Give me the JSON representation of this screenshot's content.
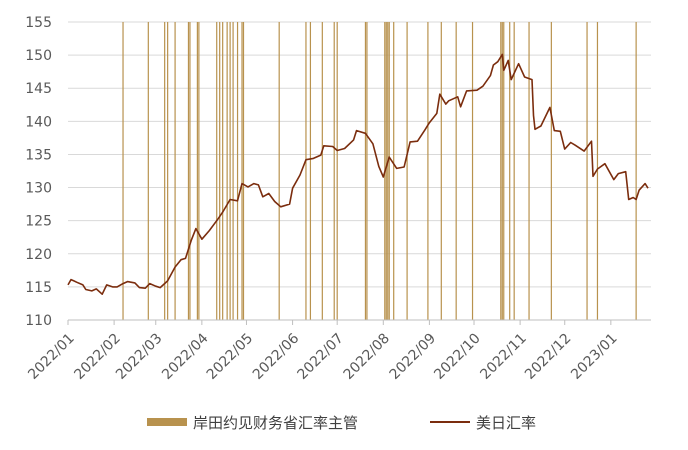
{
  "chart_data": {
    "type": "line",
    "title": "",
    "xlabel": "",
    "ylabel": "",
    "ylim": [
      110,
      155
    ],
    "y_ticks": [
      110,
      115,
      120,
      125,
      130,
      135,
      140,
      145,
      150,
      155
    ],
    "xlim": [
      "2022-01-01",
      "2023-01-28"
    ],
    "x_tick_labels": [
      "2022/01",
      "2022/02",
      "2022/03",
      "2022/04",
      "2022/05",
      "2022/06",
      "2022/07",
      "2022/08",
      "2022/09",
      "2022/10",
      "2022/11",
      "2022/12",
      "2023/01"
    ],
    "x_tick_dates": [
      "2022-01-01",
      "2022-02-01",
      "2022-03-01",
      "2022-04-01",
      "2022-05-01",
      "2022-06-01",
      "2022-07-01",
      "2022-08-01",
      "2022-09-01",
      "2022-10-01",
      "2022-11-01",
      "2022-12-01",
      "2023-01-01"
    ],
    "grid": "horizontal",
    "legend_position": "bottom",
    "colors": {
      "verbal_intervention": "#B8924E",
      "usdjpy": "#7B2D0E",
      "grid": "#D9D9D9",
      "axis": "#BFBFBF"
    },
    "series": [
      {
        "name": "美日汇率",
        "type": "line",
        "x": [
          "2022-01-01",
          "2022-01-03",
          "2022-01-05",
          "2022-01-07",
          "2022-01-11",
          "2022-01-13",
          "2022-01-17",
          "2022-01-20",
          "2022-01-24",
          "2022-01-27",
          "2022-01-31",
          "2022-02-03",
          "2022-02-07",
          "2022-02-10",
          "2022-02-15",
          "2022-02-18",
          "2022-02-22",
          "2022-02-25",
          "2022-03-01",
          "2022-03-04",
          "2022-03-09",
          "2022-03-14",
          "2022-03-18",
          "2022-03-21",
          "2022-03-25",
          "2022-03-28",
          "2022-04-01",
          "2022-04-06",
          "2022-04-12",
          "2022-04-15",
          "2022-04-20",
          "2022-04-25",
          "2022-04-28",
          "2022-05-02",
          "2022-05-06",
          "2022-05-09",
          "2022-05-12",
          "2022-05-16",
          "2022-05-20",
          "2022-05-24",
          "2022-05-30",
          "2022-06-01",
          "2022-06-06",
          "2022-06-10",
          "2022-06-15",
          "2022-06-20",
          "2022-06-22",
          "2022-06-28",
          "2022-07-01",
          "2022-07-06",
          "2022-07-12",
          "2022-07-14",
          "2022-07-20",
          "2022-07-25",
          "2022-07-29",
          "2022-08-01",
          "2022-08-05",
          "2022-08-10",
          "2022-08-15",
          "2022-08-19",
          "2022-08-24",
          "2022-08-29",
          "2022-09-01",
          "2022-09-06",
          "2022-09-08",
          "2022-09-12",
          "2022-09-14",
          "2022-09-20",
          "2022-09-22",
          "2022-09-26",
          "2022-10-03",
          "2022-10-07",
          "2022-10-12",
          "2022-10-14",
          "2022-10-17",
          "2022-10-20",
          "2022-10-21",
          "2022-10-24",
          "2022-10-26",
          "2022-10-31",
          "2022-11-04",
          "2022-11-09",
          "2022-11-10",
          "2022-11-11",
          "2022-11-15",
          "2022-11-21",
          "2022-11-24",
          "2022-11-28",
          "2022-12-01",
          "2022-12-05",
          "2022-12-08",
          "2022-12-14",
          "2022-12-19",
          "2022-12-20",
          "2022-12-23",
          "2022-12-28",
          "2023-01-03",
          "2023-01-06",
          "2023-01-11",
          "2023-01-13",
          "2023-01-16",
          "2023-01-18",
          "2023-01-20",
          "2023-01-24",
          "2023-01-26"
        ],
        "y": [
          115.3,
          116.1,
          115.9,
          115.7,
          115.3,
          114.6,
          114.4,
          114.7,
          113.9,
          115.3,
          115.0,
          115.0,
          115.5,
          115.8,
          115.6,
          114.9,
          114.8,
          115.5,
          115.1,
          114.9,
          115.9,
          118.0,
          119.1,
          119.3,
          122.1,
          123.8,
          122.2,
          123.5,
          125.3,
          126.3,
          128.2,
          128.0,
          130.6,
          130.1,
          130.6,
          130.4,
          128.6,
          129.1,
          127.9,
          127.1,
          127.5,
          129.9,
          131.9,
          134.2,
          134.4,
          134.9,
          136.3,
          136.2,
          135.6,
          135.9,
          137.2,
          138.6,
          138.2,
          136.6,
          133.2,
          131.6,
          134.6,
          132.9,
          133.1,
          136.9,
          137.0,
          138.7,
          139.8,
          141.2,
          144.1,
          142.6,
          143.1,
          143.7,
          142.2,
          144.6,
          144.7,
          145.3,
          146.9,
          148.5,
          149.0,
          150.1,
          147.7,
          149.2,
          146.3,
          148.7,
          146.7,
          146.3,
          140.9,
          138.8,
          139.3,
          142.1,
          138.6,
          138.5,
          135.8,
          136.8,
          136.4,
          135.5,
          137.0,
          131.7,
          132.8,
          133.6,
          131.2,
          132.1,
          132.4,
          128.2,
          128.5,
          128.2,
          129.6,
          130.6,
          129.9
        ]
      },
      {
        "name": "岸田约见财务省汇率主管",
        "type": "vline",
        "dates": [
          "2022-02-07",
          "2022-02-24",
          "2022-03-07",
          "2022-03-09",
          "2022-03-14",
          "2022-03-23",
          "2022-03-24",
          "2022-03-29",
          "2022-03-30",
          "2022-04-11",
          "2022-04-13",
          "2022-04-15",
          "2022-04-18",
          "2022-04-20",
          "2022-04-22",
          "2022-04-25",
          "2022-04-28",
          "2022-04-29",
          "2022-05-23",
          "2022-06-10",
          "2022-06-13",
          "2022-06-21",
          "2022-06-29",
          "2022-07-01",
          "2022-07-20",
          "2022-07-21",
          "2022-08-02",
          "2022-08-03",
          "2022-08-04",
          "2022-08-05",
          "2022-08-08",
          "2022-08-17",
          "2022-08-31",
          "2022-09-09",
          "2022-09-19",
          "2022-09-30",
          "2022-10-19",
          "2022-10-20",
          "2022-10-21",
          "2022-10-25",
          "2022-10-28",
          "2022-11-07",
          "2022-11-22",
          "2022-12-16",
          "2022-12-23",
          "2023-01-18"
        ]
      }
    ]
  },
  "legend": {
    "items": [
      {
        "label": "岸田约见财务省汇率主管"
      },
      {
        "label": "美日汇率"
      }
    ]
  }
}
